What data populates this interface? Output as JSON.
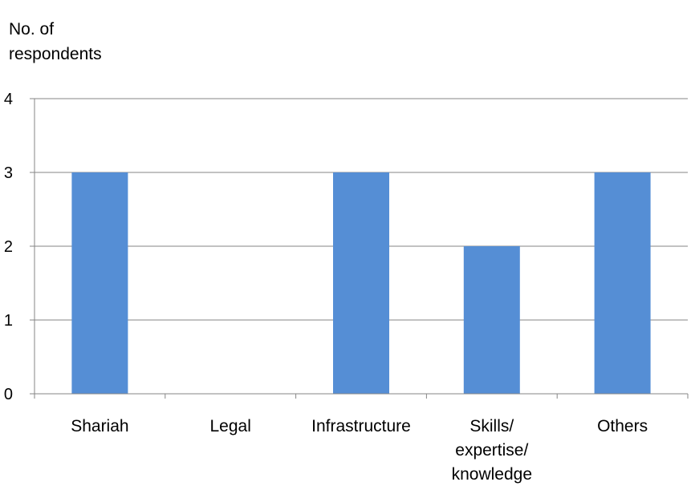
{
  "chart_data": {
    "type": "bar",
    "title": "",
    "ylabel": "No. of respondents",
    "ylabel_lines": [
      "No. of",
      "respondents"
    ],
    "xlabel": "",
    "categories": [
      "Shariah",
      "Legal",
      "Infrastructure",
      "Skills/ expertise/ knowledge",
      "Others"
    ],
    "category_lines": [
      [
        "Shariah"
      ],
      [
        "Legal"
      ],
      [
        "Infrastructure"
      ],
      [
        "Skills/",
        "expertise/",
        "knowledge"
      ],
      [
        "Others"
      ]
    ],
    "values": [
      3,
      0,
      3,
      2,
      3
    ],
    "ylim": [
      0,
      4
    ],
    "yticks": [
      "0",
      "1",
      "2",
      "3",
      "4"
    ],
    "grid": true,
    "legend": "none",
    "bar_color": "#558ED5",
    "grid_color": "#868686"
  }
}
